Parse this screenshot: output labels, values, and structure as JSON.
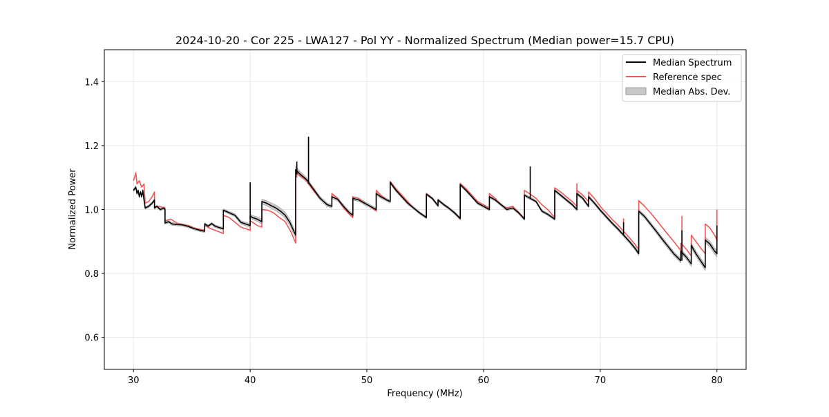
{
  "chart_data": {
    "type": "line",
    "title": "2024-10-20 - Cor 225 - LWA127 - Pol YY - Normalized Spectrum (Median power=15.7 CPU)",
    "xlabel": "Frequency (MHz)",
    "ylabel": "Normalized Power",
    "xlim": [
      27.5,
      82.5
    ],
    "ylim": [
      0.5,
      1.5
    ],
    "xticks": [
      30,
      40,
      50,
      60,
      70,
      80
    ],
    "yticks": [
      0.6,
      0.8,
      1.0,
      1.2,
      1.4
    ],
    "xtick_labels": [
      "30",
      "40",
      "50",
      "60",
      "70",
      "80"
    ],
    "ytick_labels": [
      "0.6",
      "0.8",
      "1.0",
      "1.2",
      "1.4"
    ],
    "grid": true,
    "legend_position": "top-right",
    "legend": [
      "Median Spectrum",
      "Reference spec",
      "Median Abs. Dev."
    ],
    "colors": {
      "median": "#000000",
      "reference": "#ee5555",
      "mad_fill": "#c8c8c8",
      "mad_edge": "#999999",
      "overlap": "#8b0000"
    },
    "band": {
      "name": "Median Abs. Dev.",
      "x": [
        30.0,
        38.0,
        40.0,
        42.0,
        43.9,
        45.0,
        55.0,
        65.0,
        72.0,
        77.0,
        79.0,
        80.0
      ],
      "halfwidth": [
        0.004,
        0.004,
        0.006,
        0.009,
        0.01,
        0.006,
        0.004,
        0.004,
        0.005,
        0.007,
        0.009,
        0.01
      ]
    },
    "series": [
      {
        "name": "Median Spectrum",
        "segments": [
          {
            "x": [
              30.0,
              30.2,
              30.3,
              30.4,
              30.5,
              30.6,
              30.7,
              30.8,
              30.9,
              31.0,
              31.3,
              31.6,
              31.8
            ],
            "y": [
              1.06,
              1.07,
              1.05,
              1.06,
              1.04,
              1.055,
              1.04,
              1.06,
              1.03,
              1.005,
              1.01,
              1.02,
              1.03
            ]
          },
          {
            "x": [
              31.8,
              32.0,
              32.3,
              32.6,
              32.7
            ],
            "y": [
              1.005,
              1.01,
              1.0,
              1.005,
              1.0
            ]
          },
          {
            "x": [
              32.7,
              33.0,
              33.3,
              33.7,
              34.2,
              34.7,
              35.2,
              35.7,
              36.1
            ],
            "y": [
              0.958,
              0.962,
              0.955,
              0.953,
              0.952,
              0.947,
              0.94,
              0.935,
              0.932
            ]
          },
          {
            "x": [
              36.1,
              36.4,
              36.7,
              37.0,
              37.3,
              37.7
            ],
            "y": [
              0.955,
              0.948,
              0.956,
              0.948,
              0.944,
              0.94
            ]
          },
          {
            "x": [
              37.7,
              38.2,
              38.7,
              39.2,
              39.6,
              40.0
            ],
            "y": [
              0.998,
              0.99,
              0.982,
              0.96,
              0.955,
              0.95
            ]
          },
          {
            "x": [
              40.0,
              40.2,
              40.6,
              41.0
            ],
            "y": [
              0.98,
              0.975,
              0.97,
              0.962
            ]
          },
          {
            "x": [
              41.0,
              41.4,
              41.8,
              42.2,
              42.6,
              43.0,
              43.4,
              43.9
            ],
            "y": [
              1.025,
              1.02,
              1.012,
              1.005,
              0.995,
              0.982,
              0.96,
              0.92
            ]
          },
          {
            "x": [
              43.9,
              44.3,
              44.7,
              45.0
            ],
            "y": [
              1.125,
              1.11,
              1.098,
              1.087
            ]
          },
          {
            "x": [
              45.0,
              45.5,
              46.0,
              46.6,
              47.0
            ],
            "y": [
              1.085,
              1.06,
              1.035,
              1.015,
              1.01
            ]
          },
          {
            "x": [
              47.0,
              47.5,
              48.0,
              48.5,
              48.8
            ],
            "y": [
              1.04,
              1.032,
              1.01,
              0.99,
              0.982
            ]
          },
          {
            "x": [
              48.8,
              49.3,
              49.8,
              50.2,
              50.8
            ],
            "y": [
              1.035,
              1.03,
              1.02,
              1.012,
              1.0
            ]
          },
          {
            "x": [
              50.8,
              51.2,
              51.7,
              52.0
            ],
            "y": [
              1.05,
              1.04,
              1.03,
              1.025
            ]
          },
          {
            "x": [
              52.0,
              52.5,
              53.0,
              53.5,
              54.0,
              54.5,
              55.1
            ],
            "y": [
              1.085,
              1.06,
              1.04,
              1.02,
              1.005,
              0.99,
              0.975
            ]
          },
          {
            "x": [
              55.1,
              55.6,
              56.1
            ],
            "y": [
              1.048,
              1.035,
              1.012
            ]
          },
          {
            "x": [
              56.1,
              56.6,
              57.0,
              57.5,
              58.0
            ],
            "y": [
              1.03,
              1.015,
              1.005,
              0.99,
              0.972
            ]
          },
          {
            "x": [
              58.0,
              58.5,
              59.0,
              59.5,
              60.0,
              60.5
            ],
            "y": [
              1.078,
              1.06,
              1.04,
              1.02,
              1.01,
              1.0
            ]
          },
          {
            "x": [
              60.5,
              61.0,
              61.5,
              62.0,
              62.5,
              63.0,
              63.5
            ],
            "y": [
              1.04,
              1.03,
              1.015,
              1.0,
              1.005,
              0.99,
              0.97
            ]
          },
          {
            "x": [
              63.5,
              64.0,
              64.5,
              65.0,
              65.5,
              66.1
            ],
            "y": [
              1.045,
              1.035,
              1.025,
              0.995,
              0.985,
              0.97
            ]
          },
          {
            "x": [
              66.1,
              66.6,
              67.1,
              67.6,
              68.0
            ],
            "y": [
              1.06,
              1.045,
              1.03,
              1.015,
              1.0
            ]
          },
          {
            "x": [
              68.0,
              68.5,
              69.0
            ],
            "y": [
              1.05,
              1.035,
              1.01
            ]
          },
          {
            "x": [
              69.0,
              69.5,
              70.0,
              70.5,
              71.0,
              71.5,
              72.0,
              72.5,
              73.0,
              73.3
            ],
            "y": [
              1.04,
              1.02,
              0.998,
              0.978,
              0.958,
              0.94,
              0.92,
              0.9,
              0.878,
              0.862
            ]
          },
          {
            "x": [
              73.3,
              73.8,
              74.3,
              74.8,
              75.3,
              75.8,
              76.3,
              76.9
            ],
            "y": [
              0.995,
              0.978,
              0.955,
              0.932,
              0.908,
              0.885,
              0.862,
              0.84
            ]
          },
          {
            "x": [
              76.9,
              77.4,
              77.8
            ],
            "y": [
              0.87,
              0.85,
              0.83
            ]
          },
          {
            "x": [
              77.8,
              78.2,
              78.6,
              79.0
            ],
            "y": [
              0.888,
              0.862,
              0.84,
              0.818
            ]
          },
          {
            "x": [
              79.0,
              79.4,
              79.8,
              80.0
            ],
            "y": [
              0.905,
              0.892,
              0.87,
              0.862
            ]
          }
        ],
        "spikes": [
          {
            "x": 40.0,
            "y0": 0.96,
            "y1": 1.085
          },
          {
            "x": 44.0,
            "y0": 1.11,
            "y1": 1.15
          },
          {
            "x": 45.0,
            "y0": 1.08,
            "y1": 1.228
          },
          {
            "x": 64.0,
            "y0": 1.035,
            "y1": 1.135
          },
          {
            "x": 72.0,
            "y0": 0.92,
            "y1": 0.96
          },
          {
            "x": 77.0,
            "y0": 0.84,
            "y1": 0.935
          },
          {
            "x": 80.0,
            "y0": 0.86,
            "y1": 0.95
          }
        ]
      },
      {
        "name": "Reference spec",
        "segments": [
          {
            "x": [
              30.0,
              30.2,
              30.3,
              30.5,
              30.7,
              30.9,
              31.0,
              31.3,
              31.6,
              31.8
            ],
            "y": [
              1.09,
              1.115,
              1.08,
              1.09,
              1.07,
              1.08,
              1.02,
              1.025,
              1.04,
              1.055
            ]
          },
          {
            "x": [
              31.8,
              32.2,
              32.7
            ],
            "y": [
              1.01,
              1.01,
              1.005
            ]
          },
          {
            "x": [
              32.7,
              33.2,
              33.7,
              34.2,
              34.7,
              35.2,
              35.7,
              36.1
            ],
            "y": [
              0.965,
              0.97,
              0.958,
              0.952,
              0.95,
              0.942,
              0.938,
              0.935
            ]
          },
          {
            "x": [
              36.1,
              36.5,
              37.0,
              37.7
            ],
            "y": [
              0.95,
              0.942,
              0.935,
              0.925
            ]
          },
          {
            "x": [
              37.7,
              38.2,
              38.7,
              39.2,
              39.6,
              40.0
            ],
            "y": [
              0.982,
              0.975,
              0.96,
              0.945,
              0.94,
              0.935
            ]
          },
          {
            "x": [
              40.0,
              40.3,
              40.6,
              41.0
            ],
            "y": [
              0.965,
              0.958,
              0.95,
              0.945
            ]
          },
          {
            "x": [
              41.0,
              41.5,
              42.0,
              42.5,
              43.0,
              43.5,
              43.9
            ],
            "y": [
              1.0,
              0.998,
              0.99,
              0.975,
              0.962,
              0.93,
              0.895
            ]
          },
          {
            "x": [
              43.9,
              44.3,
              44.7,
              45.0
            ],
            "y": [
              1.12,
              1.105,
              1.095,
              1.08
            ]
          },
          {
            "x": [
              45.0,
              45.5,
              46.0,
              46.6,
              47.0
            ],
            "y": [
              1.08,
              1.055,
              1.035,
              1.015,
              1.01
            ]
          },
          {
            "x": [
              47.0,
              47.5,
              48.0,
              48.5,
              48.8
            ],
            "y": [
              1.05,
              1.035,
              1.005,
              0.985,
              0.975
            ]
          },
          {
            "x": [
              48.8,
              49.3,
              49.8,
              50.2,
              50.8
            ],
            "y": [
              1.04,
              1.035,
              1.02,
              1.012,
              0.995
            ]
          },
          {
            "x": [
              50.8,
              51.2,
              51.7,
              52.0
            ],
            "y": [
              1.06,
              1.045,
              1.03,
              1.025
            ]
          },
          {
            "x": [
              52.0,
              52.5,
              53.0,
              53.5,
              54.0,
              54.5,
              55.1
            ],
            "y": [
              1.088,
              1.065,
              1.045,
              1.025,
              1.005,
              0.99,
              0.975
            ]
          },
          {
            "x": [
              55.1,
              55.6,
              56.1
            ],
            "y": [
              1.05,
              1.035,
              1.012
            ]
          },
          {
            "x": [
              56.1,
              56.6,
              57.0,
              57.5,
              58.0
            ],
            "y": [
              1.03,
              1.015,
              1.005,
              0.99,
              0.97
            ]
          },
          {
            "x": [
              58.0,
              58.5,
              59.0,
              59.5,
              60.0,
              60.5
            ],
            "y": [
              1.082,
              1.065,
              1.045,
              1.025,
              1.015,
              1.005
            ]
          },
          {
            "x": [
              60.5,
              61.0,
              61.5,
              62.0,
              62.5,
              63.0,
              63.5
            ],
            "y": [
              1.05,
              1.035,
              1.015,
              1.005,
              1.01,
              0.992,
              0.972
            ]
          },
          {
            "x": [
              63.5,
              64.0,
              64.5,
              65.0,
              65.5,
              66.1
            ],
            "y": [
              1.06,
              1.048,
              1.035,
              1.015,
              1.0,
              0.975
            ]
          },
          {
            "x": [
              66.1,
              66.6,
              67.1,
              67.6,
              68.0
            ],
            "y": [
              1.068,
              1.055,
              1.04,
              1.025,
              1.01
            ]
          },
          {
            "x": [
              68.0,
              68.5,
              69.0
            ],
            "y": [
              1.06,
              1.045,
              1.025
            ]
          },
          {
            "x": [
              69.0,
              69.5,
              70.0,
              70.5,
              71.0,
              71.5,
              72.0,
              72.5,
              73.0,
              73.3
            ],
            "y": [
              1.055,
              1.035,
              1.01,
              0.99,
              0.97,
              0.952,
              0.932,
              0.912,
              0.89,
              0.875
            ]
          },
          {
            "x": [
              73.3,
              73.8,
              74.3,
              74.8,
              75.3,
              75.8,
              76.3,
              76.9
            ],
            "y": [
              1.028,
              1.01,
              0.99,
              0.968,
              0.945,
              0.922,
              0.9,
              0.872
            ]
          },
          {
            "x": [
              76.9,
              77.4,
              77.8
            ],
            "y": [
              0.895,
              0.875,
              0.855
            ]
          },
          {
            "x": [
              77.8,
              78.2,
              78.6,
              79.0
            ],
            "y": [
              0.92,
              0.9,
              0.88,
              0.862
            ]
          },
          {
            "x": [
              79.0,
              79.4,
              79.8,
              80.0
            ],
            "y": [
              0.955,
              0.942,
              0.92,
              0.905
            ]
          }
        ],
        "spikes": [
          {
            "x": 44.0,
            "y0": 1.1,
            "y1": 1.14
          },
          {
            "x": 45.0,
            "y0": 1.08,
            "y1": 1.228
          },
          {
            "x": 68.0,
            "y0": 1.03,
            "y1": 1.082
          },
          {
            "x": 72.0,
            "y0": 0.92,
            "y1": 0.972
          },
          {
            "x": 77.0,
            "y0": 0.86,
            "y1": 0.98
          },
          {
            "x": 80.0,
            "y0": 0.9,
            "y1": 1.0
          }
        ]
      }
    ]
  }
}
